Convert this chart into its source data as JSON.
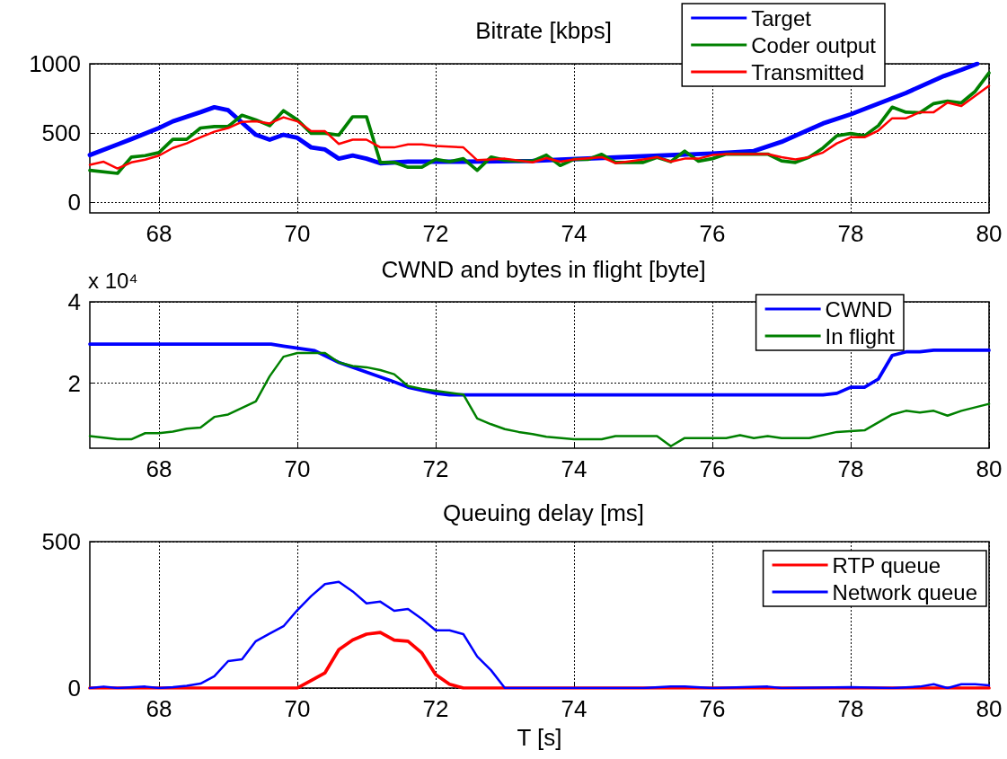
{
  "chart_data": [
    {
      "type": "line",
      "title": "Bitrate [kbps]",
      "xlim": [
        67,
        80
      ],
      "xticks": [
        68,
        70,
        72,
        74,
        76,
        78,
        80
      ],
      "ylim": [
        -75,
        1000
      ],
      "yticks": [
        0,
        500,
        1000
      ],
      "grid": true,
      "legend": "top right",
      "marker": "none",
      "line_style": "solid",
      "series": [
        {
          "name": "Target",
          "color": "#0000ff",
          "x": [
            67,
            67.42,
            67.6,
            68,
            68.2,
            68.6,
            68.8,
            69,
            69.2,
            69.4,
            69.6,
            69.8,
            70,
            70.2,
            70.4,
            70.6,
            70.8,
            71,
            71.2,
            71.6,
            72.4,
            73.4,
            73.8,
            76,
            76.6,
            77,
            77.4,
            77.6,
            78,
            78.8,
            79.35,
            79.6,
            79.83
          ],
          "values": [
            342,
            422,
            457,
            537,
            585,
            651,
            687,
            665,
            576,
            488,
            453,
            488,
            466,
            397,
            382,
            316,
            338,
            316,
            283,
            294,
            294,
            300,
            309,
            353,
            371,
            437,
            525,
            570,
            636,
            790,
            912,
            956,
            1000
          ]
        },
        {
          "name": "Coder output",
          "color": "#008000",
          "x": [
            67,
            67.4,
            67.6,
            67.8,
            68,
            68.2,
            68.4,
            68.6,
            68.8,
            69,
            69.2,
            69.4,
            69.6,
            69.8,
            70,
            70.2,
            70.4,
            70.6,
            70.8,
            71,
            71.2,
            71.4,
            71.6,
            71.8,
            72,
            72.2,
            72.4,
            72.6,
            72.8,
            73,
            73.2,
            73.4,
            73.6,
            73.8,
            74,
            74.2,
            74.4,
            74.6,
            75,
            75.2,
            75.4,
            75.6,
            75.8,
            76,
            76.2,
            76.8,
            77,
            77.2,
            77.4,
            77.6,
            77.8,
            78,
            78.2,
            78.4,
            78.6,
            78.8,
            79,
            79.2,
            79.4,
            79.6,
            79.8,
            80
          ],
          "values": [
            232,
            210,
            327,
            338,
            360,
            455,
            455,
            537,
            548,
            548,
            629,
            596,
            554,
            662,
            596,
            499,
            499,
            486,
            618,
            618,
            289,
            289,
            254,
            254,
            311,
            294,
            316,
            232,
            327,
            305,
            298,
            298,
            342,
            267,
            311,
            311,
            347,
            289,
            289,
            325,
            294,
            371,
            298,
            316,
            349,
            349,
            300,
            289,
            327,
            393,
            481,
            497,
            481,
            554,
            687,
            651,
            647,
            713,
            731,
            718,
            801,
            934
          ]
        },
        {
          "name": "Transmitted",
          "color": "#ff0000",
          "x": [
            67,
            67.2,
            67.4,
            67.6,
            67.8,
            68,
            68.2,
            68.4,
            68.6,
            68.8,
            69,
            69.2,
            69.4,
            69.6,
            69.8,
            70,
            70.2,
            70.4,
            70.6,
            70.8,
            71,
            71.2,
            71.4,
            71.6,
            71.8,
            72,
            72.4,
            72.6,
            72.8,
            73,
            73.4,
            73.6,
            73.8,
            74,
            74.4,
            74.6,
            75,
            75.2,
            75.4,
            75.6,
            75.8,
            76,
            76.2,
            76.8,
            77,
            77.2,
            77.4,
            77.6,
            77.8,
            78,
            78.2,
            78.4,
            78.6,
            78.8,
            79,
            79.2,
            79.4,
            79.6,
            79.8,
            80
          ],
          "values": [
            272,
            294,
            245,
            289,
            309,
            338,
            393,
            426,
            470,
            510,
            537,
            581,
            585,
            570,
            614,
            585,
            514,
            514,
            422,
            453,
            453,
            397,
            397,
            419,
            419,
            408,
            397,
            305,
            311,
            316,
            289,
            320,
            294,
            311,
            327,
            283,
            311,
            327,
            294,
            316,
            316,
            342,
            349,
            349,
            327,
            311,
            327,
            360,
            426,
            470,
            470,
            519,
            607,
            607,
            651,
            651,
            720,
            696,
            768,
            841
          ]
        }
      ]
    },
    {
      "type": "line",
      "title": "CWND and bytes in flight [byte]",
      "annotations": [
        "x 10⁴"
      ],
      "xlim": [
        67,
        80
      ],
      "xticks": [
        68,
        70,
        72,
        74,
        76,
        78,
        80
      ],
      "ylim": [
        0.4,
        4
      ],
      "yticks": [
        2,
        4
      ],
      "grid": true,
      "legend": "top right",
      "marker": "none",
      "line_style": "solid",
      "series": [
        {
          "name": "CWND",
          "color": "#0000ff",
          "x": [
            67,
            69.62,
            69.8,
            70.25,
            70.6,
            71.34,
            71.6,
            72,
            72.2,
            77.6,
            77.8,
            78,
            78.2,
            78.4,
            78.6,
            78.8,
            79,
            79.2,
            80
          ],
          "values": [
            2.96,
            2.96,
            2.91,
            2.8,
            2.51,
            2.07,
            1.9,
            1.75,
            1.71,
            1.71,
            1.75,
            1.9,
            1.9,
            2.1,
            2.68,
            2.77,
            2.77,
            2.81,
            2.81
          ]
        },
        {
          "name": "In flight",
          "color": "#008000",
          "x": [
            67,
            67.4,
            67.6,
            67.8,
            68,
            68.2,
            68.4,
            68.6,
            68.8,
            69,
            69.2,
            69.4,
            69.6,
            69.8,
            70,
            70.4,
            70.6,
            70.8,
            71,
            71.2,
            71.4,
            71.6,
            71.8,
            72.4,
            72.6,
            72.8,
            73,
            73.2,
            73.4,
            73.6,
            74,
            74.4,
            74.6,
            75.2,
            75.4,
            75.6,
            76.2,
            76.4,
            76.6,
            76.8,
            77,
            77.4,
            77.8,
            78.2,
            78.6,
            78.8,
            79,
            79.2,
            79.4,
            79.6,
            80
          ],
          "values": [
            0.7,
            0.62,
            0.62,
            0.77,
            0.77,
            0.81,
            0.88,
            0.91,
            1.17,
            1.23,
            1.39,
            1.55,
            2.17,
            2.65,
            2.74,
            2.74,
            2.51,
            2.42,
            2.39,
            2.32,
            2.22,
            1.93,
            1.86,
            1.72,
            1.13,
            0.99,
            0.87,
            0.8,
            0.75,
            0.68,
            0.62,
            0.62,
            0.7,
            0.7,
            0.45,
            0.65,
            0.65,
            0.72,
            0.65,
            0.7,
            0.65,
            0.65,
            0.8,
            0.84,
            1.23,
            1.32,
            1.28,
            1.32,
            1.2,
            1.32,
            1.49
          ]
        }
      ]
    },
    {
      "type": "line",
      "title": "Queuing delay [ms]",
      "xlabel": "T [s]",
      "xlim": [
        67,
        80
      ],
      "xticks": [
        68,
        70,
        72,
        74,
        76,
        78,
        80
      ],
      "ylim": [
        0,
        500
      ],
      "yticks": [
        0,
        500
      ],
      "grid": true,
      "legend": "top right",
      "marker": "none",
      "line_style": "solid",
      "series": [
        {
          "name": "RTP queue",
          "color": "#ff0000",
          "x": [
            67,
            70,
            70.2,
            70.4,
            70.6,
            70.8,
            71,
            71.2,
            71.4,
            71.6,
            71.8,
            72,
            72.2,
            72.4,
            80
          ],
          "values": [
            0,
            0,
            26,
            52,
            131,
            164,
            184,
            190,
            164,
            160,
            120,
            46,
            13,
            0,
            0
          ]
        },
        {
          "name": "Network queue",
          "color": "#0000ff",
          "x": [
            67,
            67.2,
            67.4,
            67.8,
            68,
            68.2,
            68.4,
            68.6,
            68.8,
            69,
            69.2,
            69.4,
            69.6,
            69.8,
            70,
            70.2,
            70.4,
            70.6,
            70.8,
            71,
            71.2,
            71.4,
            71.6,
            71.8,
            72,
            72.2,
            72.4,
            72.6,
            72.8,
            73,
            75,
            75.4,
            75.6,
            76,
            76.8,
            77,
            78,
            78.6,
            79,
            79.2,
            79.4,
            79.6,
            79.8,
            80
          ],
          "values": [
            0,
            5,
            0,
            5,
            0,
            3,
            8,
            15,
            40,
            92,
            98,
            160,
            186,
            211,
            266,
            314,
            355,
            363,
            330,
            289,
            295,
            264,
            270,
            236,
            197,
            197,
            184,
            108,
            61,
            0,
            0,
            5,
            5,
            0,
            5,
            0,
            3,
            0,
            5,
            13,
            0,
            13,
            13,
            9
          ]
        }
      ]
    }
  ]
}
